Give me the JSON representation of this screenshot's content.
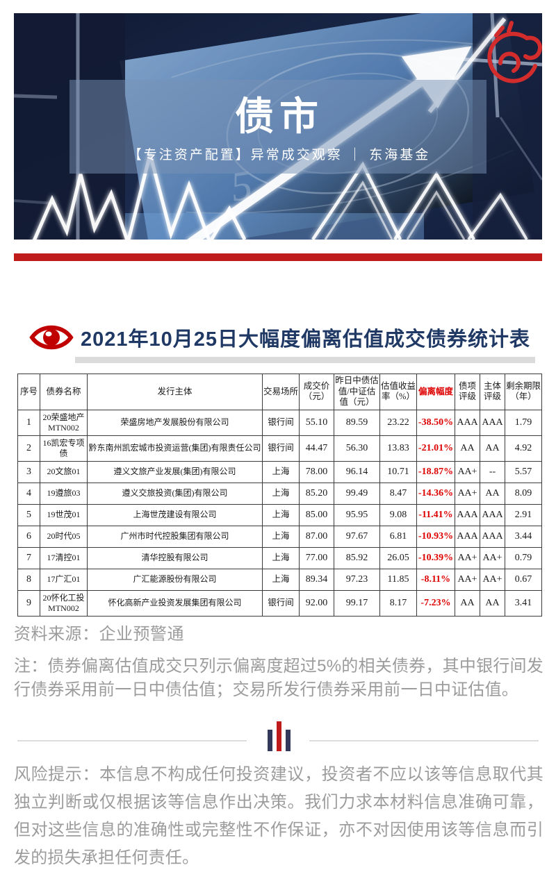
{
  "hero": {
    "title": "债市",
    "subtitle": "【专注资产配置】异常成交观察 ｜ 东海基金"
  },
  "section": {
    "title": "2021年10月25日大幅度偏离估值成交债券统计表"
  },
  "table": {
    "headers": [
      "序号",
      "债券名称",
      "发行主体",
      "交易场所",
      "成交价（元）",
      "昨日中债估值/中证估值（元）",
      "估值收益率（%）",
      "偏离幅度",
      "债项评级",
      "主体评级",
      "剩余期限（年）"
    ],
    "deviation_column_index": 7,
    "rows": [
      [
        "1",
        "20荣盛地产MTN002",
        "荣盛房地产发展股份有限公司",
        "银行间",
        "55.10",
        "89.59",
        "23.22",
        "-38.50%",
        "AAA",
        "AAA",
        "1.79"
      ],
      [
        "2",
        "16凯宏专项债",
        "黔东南州凯宏城市投资运营(集团)有限责任公司",
        "银行间",
        "44.47",
        "56.30",
        "13.83",
        "-21.01%",
        "AA",
        "AA",
        "4.92"
      ],
      [
        "3",
        "20文旅01",
        "遵义文旅产业发展(集团)有限公司",
        "上海",
        "78.00",
        "96.14",
        "10.71",
        "-18.87%",
        "AA+",
        "--",
        "5.57"
      ],
      [
        "4",
        "19遵旅03",
        "遵义交旅投资(集团)有限公司",
        "上海",
        "85.20",
        "99.49",
        "8.47",
        "-14.36%",
        "AA+",
        "AA",
        "8.09"
      ],
      [
        "5",
        "19世茂01",
        "上海世茂建设有限公司",
        "上海",
        "85.00",
        "95.95",
        "9.08",
        "-11.41%",
        "AAA",
        "AAA",
        "2.91"
      ],
      [
        "6",
        "20时代05",
        "广州市时代控股集团有限公司",
        "上海",
        "87.00",
        "97.67",
        "6.81",
        "-10.93%",
        "AAA",
        "AAA",
        "3.44"
      ],
      [
        "7",
        "17清控01",
        "清华控股有限公司",
        "上海",
        "77.00",
        "85.92",
        "26.05",
        "-10.39%",
        "AA+",
        "AA+",
        "0.79"
      ],
      [
        "8",
        "17广汇01",
        "广汇能源股份有限公司",
        "上海",
        "89.34",
        "97.23",
        "11.85",
        "-8.11%",
        "AA+",
        "AA+",
        "0.67"
      ],
      [
        "9",
        "20怀化工投MTN002",
        "怀化高新产业投资发展集团有限公司",
        "银行间",
        "92.00",
        "99.17",
        "8.17",
        "-7.23%",
        "AA",
        "AA",
        "3.41"
      ]
    ]
  },
  "source_line": "资料来源：企业预警通",
  "note_par": "注：债券偏离估值成交只列示偏离度超过5%的相关债券，其中银行间发行债券采用前一日中债估值；交易所发行债券采用前一日中证估值。",
  "risk_par": "风险提示：本信息不构成任何投资建议，投资者不应以该等信息取代其独立判断或仅根据该等信息作出决策。我们力求本材料信息准确可靠，但对这些信息的准确性或完整性不作保证，亦不对因使用该等信息而引发的损失承担任何责任。",
  "colors": {
    "divider_red": "#C01B1B",
    "title_navy": "#1F3864",
    "deviation_red": "#DE0000",
    "grey_text": "#9C9C9C",
    "ornament_navy": "#33395A"
  }
}
